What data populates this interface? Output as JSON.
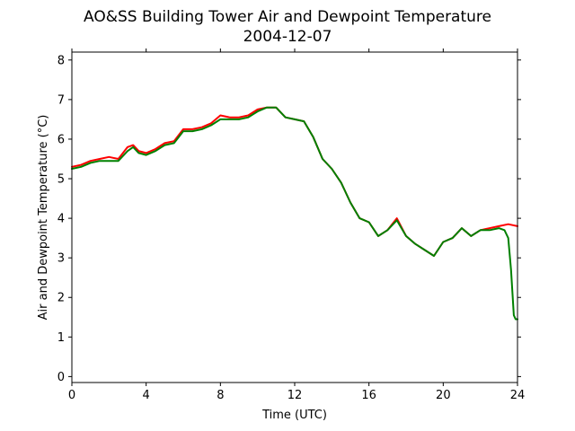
{
  "chart_data": {
    "type": "line",
    "title": "AO&SS Building Tower Air and Dewpoint Temperature",
    "subtitle": "2004-12-07",
    "xlabel": "Time (UTC)",
    "ylabel": "Air and Dewpoint Temperature (°C)",
    "xlim": [
      0,
      24
    ],
    "ylim": [
      -0.15,
      8.2
    ],
    "xticks": [
      0,
      4,
      8,
      12,
      16,
      20,
      24
    ],
    "yticks": [
      0,
      1,
      2,
      3,
      4,
      5,
      6,
      7,
      8
    ],
    "grid": false,
    "legend": "none",
    "series": [
      {
        "color": "#ff0000",
        "x": [
          0,
          0.5,
          1,
          1.5,
          2,
          2.5,
          3,
          3.3,
          3.6,
          4,
          4.5,
          5,
          5.5,
          6,
          6.5,
          7,
          7.5,
          8,
          8.5,
          9,
          9.5,
          10,
          10.5,
          11,
          11.5,
          12,
          12.5,
          13,
          13.5,
          14,
          14.5,
          15,
          15.5,
          16,
          16.5,
          17,
          17.5,
          18,
          18.5,
          19,
          19.5,
          20,
          20.5,
          21,
          21.5,
          22,
          22.5,
          23,
          23.5,
          24
        ],
        "y": [
          5.3,
          5.35,
          5.45,
          5.5,
          5.55,
          5.5,
          5.8,
          5.85,
          5.7,
          5.65,
          5.75,
          5.9,
          5.95,
          6.25,
          6.25,
          6.3,
          6.4,
          6.6,
          6.55,
          6.55,
          6.6,
          6.75,
          6.8,
          6.8,
          6.55,
          6.5,
          6.45,
          6.05,
          5.5,
          5.25,
          4.9,
          4.4,
          4.0,
          3.9,
          3.55,
          3.7,
          4.0,
          3.55,
          3.35,
          3.2,
          3.05,
          3.4,
          3.5,
          3.75,
          3.55,
          3.7,
          3.75,
          3.8,
          3.85,
          3.8
        ]
      },
      {
        "color": "#008000",
        "x": [
          0,
          0.5,
          1,
          1.5,
          2,
          2.5,
          3,
          3.3,
          3.6,
          4,
          4.5,
          5,
          5.5,
          6,
          6.5,
          7,
          7.5,
          8,
          8.5,
          9,
          9.5,
          10,
          10.5,
          11,
          11.5,
          12,
          12.5,
          13,
          13.5,
          14,
          14.5,
          15,
          15.5,
          16,
          16.5,
          17,
          17.5,
          18,
          18.5,
          19,
          19.5,
          20,
          20.5,
          21,
          21.5,
          22,
          22.5,
          23,
          23.3,
          23.5,
          23.65,
          23.8,
          23.9,
          24
        ],
        "y": [
          5.25,
          5.3,
          5.4,
          5.45,
          5.45,
          5.45,
          5.7,
          5.8,
          5.65,
          5.6,
          5.7,
          5.85,
          5.9,
          6.2,
          6.2,
          6.25,
          6.35,
          6.5,
          6.5,
          6.5,
          6.55,
          6.7,
          6.8,
          6.8,
          6.55,
          6.5,
          6.45,
          6.05,
          5.5,
          5.25,
          4.9,
          4.4,
          4.0,
          3.9,
          3.55,
          3.7,
          3.95,
          3.55,
          3.35,
          3.2,
          3.05,
          3.4,
          3.5,
          3.75,
          3.55,
          3.7,
          3.7,
          3.75,
          3.7,
          3.5,
          2.7,
          1.55,
          1.45,
          1.45
        ]
      }
    ]
  }
}
